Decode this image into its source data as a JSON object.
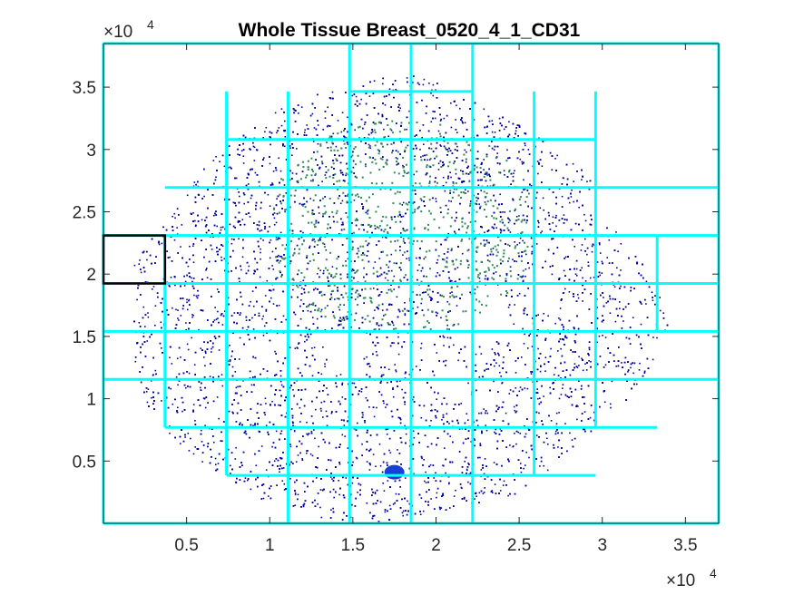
{
  "chart_data": {
    "type": "scatter",
    "title": "Whole Tissue Breast_0520_4_1_CD31",
    "xlabel": "",
    "ylabel": "",
    "xlim": [
      0,
      37000
    ],
    "ylim": [
      0,
      38500
    ],
    "x_ticks": [
      5000,
      10000,
      15000,
      20000,
      25000,
      30000,
      35000
    ],
    "x_tick_labels": [
      "0.5",
      "1",
      "1.5",
      "2",
      "2.5",
      "3",
      "3.5"
    ],
    "y_ticks": [
      5000,
      10000,
      15000,
      20000,
      25000,
      30000,
      35000
    ],
    "y_tick_labels": [
      "0.5",
      "1",
      "1.5",
      "2",
      "2.5",
      "3",
      "3.5"
    ],
    "x_exponent": {
      "base": "×10",
      "power": "4"
    },
    "y_exponent": {
      "base": "×10",
      "power": "4"
    },
    "series": [
      {
        "color": "#0000a0",
        "description": "cell points (dense)"
      },
      {
        "color": "#2e8b57",
        "description": "CD31-positive points"
      }
    ],
    "grid": {
      "color": "#00ffff",
      "x_lines": [
        0,
        3700,
        7400,
        11100,
        14800,
        18500,
        22200,
        25900,
        29600,
        33300,
        37000
      ],
      "y_lines": [
        0,
        3850,
        7700,
        11550,
        15400,
        19250,
        23100,
        26950,
        30800,
        34650,
        38500
      ]
    },
    "highlight_box": {
      "x": [
        0,
        3700
      ],
      "y": [
        19250,
        23100
      ],
      "color": "#000000"
    },
    "blob": {
      "x": 17500,
      "y": 4100,
      "color": "#1a3fd6"
    }
  }
}
